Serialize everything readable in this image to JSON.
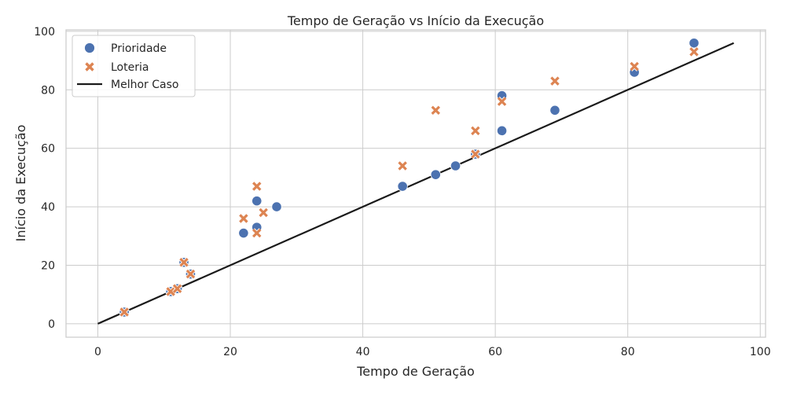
{
  "chart_data": {
    "type": "scatter",
    "title": "Tempo de Geração vs Início da Execução",
    "xlabel": "Tempo de Geração",
    "ylabel": "Início da Execução",
    "xlim": [
      -4.8,
      100.8
    ],
    "ylim": [
      -4.6,
      100.5
    ],
    "x_ticks": [
      0,
      20,
      40,
      60,
      80,
      100
    ],
    "y_ticks": [
      0,
      20,
      40,
      60,
      80,
      100
    ],
    "grid": true,
    "legend_position": "top-left",
    "series": [
      {
        "name": "Prioridade",
        "marker": "circle",
        "color": "#4c72b0",
        "points": [
          [
            4,
            4
          ],
          [
            11,
            11
          ],
          [
            12,
            12
          ],
          [
            13,
            21
          ],
          [
            14,
            17
          ],
          [
            22,
            31
          ],
          [
            24,
            33
          ],
          [
            24,
            42
          ],
          [
            27,
            40
          ],
          [
            46,
            47
          ],
          [
            51,
            51
          ],
          [
            54,
            54
          ],
          [
            57,
            58
          ],
          [
            61,
            66
          ],
          [
            61,
            78
          ],
          [
            69,
            73
          ],
          [
            81,
            86
          ],
          [
            90,
            96
          ]
        ]
      },
      {
        "name": "Loteria",
        "marker": "x",
        "color": "#dd8452",
        "points": [
          [
            4,
            4
          ],
          [
            11,
            11
          ],
          [
            12,
            12
          ],
          [
            13,
            21
          ],
          [
            14,
            17
          ],
          [
            22,
            36
          ],
          [
            24,
            31
          ],
          [
            24,
            47
          ],
          [
            25,
            38
          ],
          [
            46,
            54
          ],
          [
            51,
            73
          ],
          [
            57,
            58
          ],
          [
            57,
            66
          ],
          [
            61,
            76
          ],
          [
            69,
            83
          ],
          [
            81,
            88
          ],
          [
            90,
            93
          ]
        ]
      },
      {
        "name": "Melhor Caso",
        "type": "line",
        "color": "#1a1a1a",
        "points": [
          [
            0,
            0
          ],
          [
            96,
            96
          ]
        ]
      }
    ]
  }
}
